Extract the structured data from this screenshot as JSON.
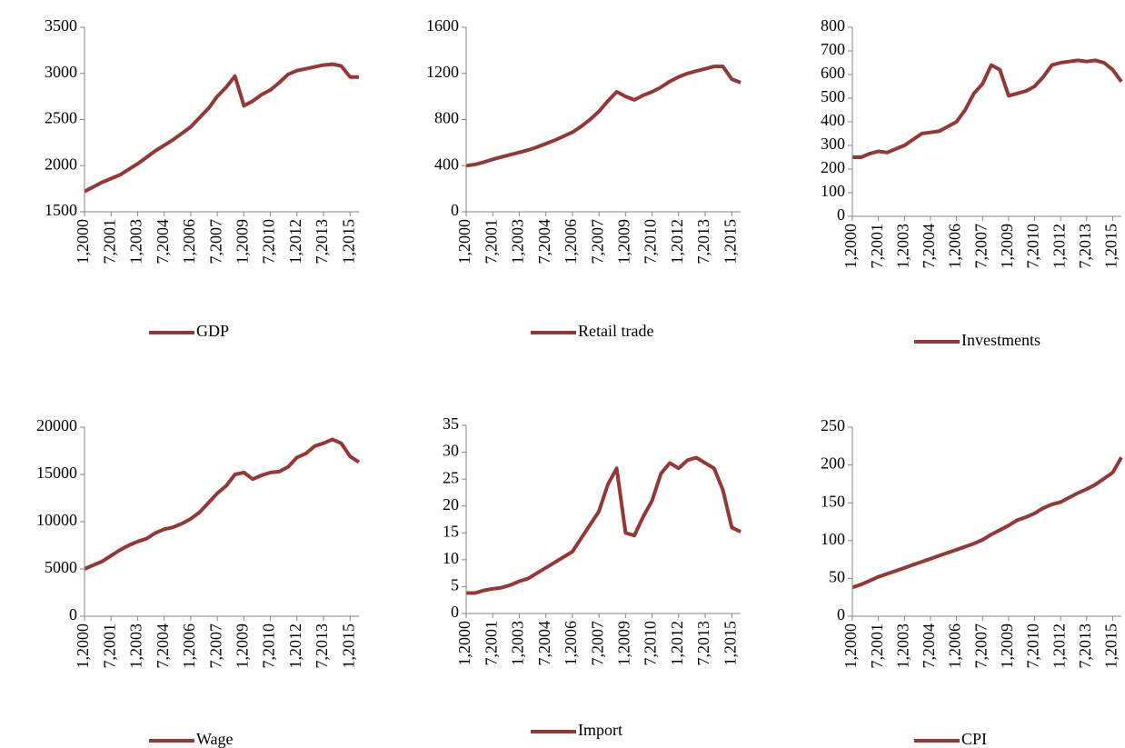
{
  "chart_data": [
    {
      "type": "line",
      "categories": [
        "1,2000",
        null,
        null,
        "7,2001",
        null,
        null,
        "1,2003",
        null,
        null,
        "7,2004",
        null,
        null,
        "1,2006",
        null,
        null,
        "7,2007",
        null,
        null,
        "1,2009",
        null,
        null,
        "7,2010",
        null,
        null,
        "1,2012",
        null,
        null,
        "7,2013",
        null,
        null,
        "1,2015",
        null
      ],
      "series": [
        {
          "name": "GDP",
          "color": "#953735",
          "values": [
            1720,
            1770,
            1820,
            1860,
            1900,
            1960,
            2020,
            2090,
            2160,
            2220,
            2280,
            2350,
            2420,
            2520,
            2620,
            2750,
            2850,
            2970,
            2650,
            2700,
            2770,
            2820,
            2900,
            2990,
            3030,
            3050,
            3070,
            3090,
            3100,
            3080,
            2960,
            2960
          ]
        }
      ],
      "ylim": [
        1500,
        3500
      ],
      "yticks": [
        1500,
        2000,
        2500,
        3000,
        3500
      ]
    },
    {
      "type": "line",
      "categories": [
        "1,2000",
        null,
        null,
        "7,2001",
        null,
        null,
        "1,2003",
        null,
        null,
        "7,2004",
        null,
        null,
        "1,2006",
        null,
        null,
        "7,2007",
        null,
        null,
        "1,2009",
        null,
        null,
        "7,2010",
        null,
        null,
        "1,2012",
        null,
        null,
        "7,2013",
        null,
        null,
        "1,2015",
        null
      ],
      "series": [
        {
          "name": "Retail trade",
          "color": "#953735",
          "values": [
            400,
            410,
            430,
            455,
            475,
            495,
            515,
            535,
            560,
            590,
            620,
            655,
            690,
            740,
            800,
            870,
            960,
            1040,
            1000,
            970,
            1010,
            1040,
            1080,
            1130,
            1170,
            1200,
            1220,
            1240,
            1260,
            1260,
            1150,
            1120
          ]
        }
      ],
      "ylim": [
        0,
        1600
      ],
      "yticks": [
        0,
        400,
        800,
        1200,
        1600
      ]
    },
    {
      "type": "line",
      "categories": [
        "1,2000",
        null,
        null,
        "7,2001",
        null,
        null,
        "1,2003",
        null,
        null,
        "7,2004",
        null,
        null,
        "1,2006",
        null,
        null,
        "7,2007",
        null,
        null,
        "1,2009",
        null,
        null,
        "7,2010",
        null,
        null,
        "1,2012",
        null,
        null,
        "7,2013",
        null,
        null,
        "1,2015",
        null
      ],
      "series": [
        {
          "name": "Investments",
          "color": "#953735",
          "values": [
            250,
            250,
            265,
            275,
            270,
            285,
            300,
            325,
            350,
            355,
            360,
            380,
            400,
            450,
            520,
            560,
            640,
            620,
            510,
            520,
            530,
            550,
            590,
            640,
            650,
            655,
            660,
            655,
            660,
            650,
            620,
            570
          ]
        }
      ],
      "ylim": [
        0,
        800
      ],
      "yticks": [
        0,
        100,
        200,
        300,
        400,
        500,
        600,
        700,
        800
      ]
    },
    {
      "type": "line",
      "categories": [
        "1,2000",
        null,
        null,
        "7,2001",
        null,
        null,
        "1,2003",
        null,
        null,
        "7,2004",
        null,
        null,
        "1,2006",
        null,
        null,
        "7,2007",
        null,
        null,
        "1,2009",
        null,
        null,
        "7,2010",
        null,
        null,
        "1,2012",
        null,
        null,
        "7,2013",
        null,
        null,
        "1,2015",
        null
      ],
      "series": [
        {
          "name": "Wage",
          "color": "#953735",
          "values": [
            5000,
            5400,
            5800,
            6400,
            7000,
            7500,
            7900,
            8200,
            8800,
            9200,
            9400,
            9800,
            10300,
            11000,
            12000,
            13000,
            13800,
            15000,
            15200,
            14500,
            14900,
            15200,
            15300,
            15800,
            16800,
            17200,
            18000,
            18300,
            18700,
            18300,
            16900,
            16300
          ]
        }
      ],
      "ylim": [
        0,
        20000
      ],
      "yticks": [
        0,
        5000,
        10000,
        15000,
        20000
      ]
    },
    {
      "type": "line",
      "categories": [
        "1,2000",
        null,
        null,
        "7,2001",
        null,
        null,
        "1,2003",
        null,
        null,
        "7,2004",
        null,
        null,
        "1,2006",
        null,
        null,
        "7,2007",
        null,
        null,
        "1,2009",
        null,
        null,
        "7,2010",
        null,
        null,
        "1,2012",
        null,
        null,
        "7,2013",
        null,
        null,
        "1,2015",
        null
      ],
      "series": [
        {
          "name": "Import",
          "color": "#953735",
          "values": [
            3.8,
            3.8,
            4.3,
            4.6,
            4.8,
            5.3,
            6.0,
            6.5,
            7.5,
            8.5,
            9.5,
            10.5,
            11.5,
            14,
            16.5,
            19,
            24,
            27,
            15,
            14.5,
            18,
            21,
            26,
            28,
            27,
            28.5,
            29,
            28,
            27,
            23,
            16,
            15.2
          ]
        }
      ],
      "ylim": [
        0,
        35
      ],
      "yticks": [
        0,
        5,
        10,
        15,
        20,
        25,
        30,
        35
      ]
    },
    {
      "type": "line",
      "categories": [
        "1,2000",
        null,
        null,
        "7,2001",
        null,
        null,
        "1,2003",
        null,
        null,
        "7,2004",
        null,
        null,
        "1,2006",
        null,
        null,
        "7,2007",
        null,
        null,
        "1,2009",
        null,
        null,
        "7,2010",
        null,
        null,
        "1,2012",
        null,
        null,
        "7,2013",
        null,
        null,
        "1,2015",
        null
      ],
      "series": [
        {
          "name": "CPI",
          "color": "#953735",
          "values": [
            38,
            42,
            47,
            52,
            56,
            60,
            64,
            68,
            72,
            76,
            80,
            84,
            88,
            92,
            96,
            101,
            108,
            114,
            120,
            127,
            131,
            136,
            143,
            148,
            151,
            157,
            163,
            168,
            174,
            182,
            190,
            210
          ]
        }
      ],
      "ylim": [
        0,
        250
      ],
      "yticks": [
        0,
        50,
        100,
        150,
        200,
        250
      ]
    }
  ]
}
